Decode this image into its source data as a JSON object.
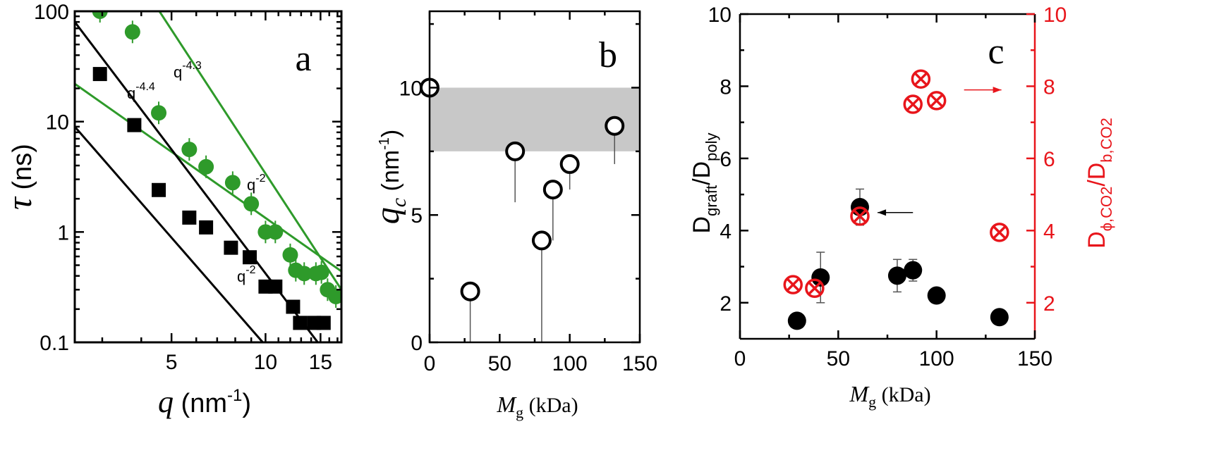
{
  "colors": {
    "green": "#2e9a2a",
    "black": "#000000",
    "red": "#e8151b",
    "band": "#c8c8c8"
  },
  "chart_data": [
    {
      "panel_label": "a",
      "type": "scatter",
      "xscale": "log",
      "yscale": "log",
      "xlim": [
        2.45,
        17.5
      ],
      "ylim": [
        0.1,
        100
      ],
      "xticks": [
        5,
        10,
        15
      ],
      "yticks": [
        0.1,
        1,
        10,
        100
      ],
      "xtick_labels": [
        "5",
        "10",
        "15"
      ],
      "ytick_labels": [
        "0.1",
        "1",
        "10",
        "100"
      ],
      "xlabel_sym": "q",
      "xlabel_unit": "(nm",
      "xlabel_exp": "-1",
      "xlabel_close": ")",
      "ylabel_sym": "τ",
      "ylabel_unit": "(ns)",
      "series": [
        {
          "color": "green",
          "marker": "circle",
          "x": [
            2.95,
            3.75,
            4.55,
            5.7,
            6.45,
            7.85,
            9.0,
            10.0,
            10.75,
            12.0,
            12.5,
            13.3,
            14.5,
            15.1,
            15.8,
            16.8
          ],
          "y": [
            100,
            65,
            12,
            5.6,
            3.9,
            2.8,
            1.8,
            1.0,
            1.0,
            0.62,
            0.45,
            0.42,
            0.42,
            0.43,
            0.3,
            0.26
          ]
        },
        {
          "color": "black",
          "marker": "square",
          "x": [
            2.95,
            3.8,
            4.55,
            5.7,
            6.45,
            7.75,
            8.9,
            10.0,
            10.75,
            12.25,
            12.9,
            14.3,
            15.35
          ],
          "y": [
            27,
            9.3,
            2.4,
            1.35,
            1.1,
            0.72,
            0.59,
            0.32,
            0.32,
            0.21,
            0.15,
            0.15,
            0.15
          ]
        }
      ],
      "fit_lines": [
        {
          "color": "green",
          "x": [
            3.7,
            17.5
          ],
          "y": [
            250,
            0.3
          ],
          "label": "q",
          "exp": "-4.3"
        },
        {
          "color": "green",
          "x": [
            2.45,
            17.5
          ],
          "y": [
            22,
            0.44
          ],
          "label": "q",
          "exp": "-2"
        },
        {
          "color": "black",
          "x": [
            2.45,
            14.7
          ],
          "y": [
            80,
            0.1
          ],
          "label": "q",
          "exp": "-4.4"
        },
        {
          "color": "black",
          "x": [
            2.45,
            9.8
          ],
          "y": [
            9,
            0.1
          ],
          "label": "q",
          "exp": "-2"
        }
      ]
    },
    {
      "panel_label": "b",
      "type": "scatter",
      "xlim": [
        0,
        150
      ],
      "ylim": [
        0,
        13
      ],
      "xticks": [
        0,
        50,
        100,
        150
      ],
      "yticks": [
        0,
        5,
        10
      ],
      "xtick_labels": [
        "0",
        "50",
        "100",
        "150"
      ],
      "ytick_labels": [
        "0",
        "5",
        "10"
      ],
      "xlabel_sym": "M",
      "xlabel_sub": "g",
      "xlabel_unit": "(kDa)",
      "ylabel_sym": "q",
      "ylabel_sub": "c",
      "ylabel_unit": "(nm",
      "ylabel_exp": "-1",
      "ylabel_close": ")",
      "band": [
        7.5,
        10
      ],
      "series": [
        {
          "color": "black",
          "marker": "open-circle",
          "x": [
            0,
            29,
            61,
            80,
            88,
            100,
            132
          ],
          "y": [
            10,
            2,
            7.5,
            4,
            6,
            7,
            8.5
          ],
          "err_low": [
            10,
            0,
            5.5,
            0,
            4,
            6,
            7
          ]
        }
      ]
    },
    {
      "panel_label": "c",
      "type": "scatter",
      "xlim": [
        0,
        150
      ],
      "ylim": [
        1,
        10
      ],
      "y2lim": [
        1,
        10
      ],
      "xticks": [
        0,
        50,
        100,
        150
      ],
      "yticks": [
        2,
        4,
        6,
        8,
        10
      ],
      "y2ticks": [
        2,
        4,
        6,
        8,
        10
      ],
      "xtick_labels": [
        "0",
        "50",
        "100",
        "150"
      ],
      "ytick_labels": [
        "2",
        "4",
        "6",
        "8",
        "10"
      ],
      "y2tick_labels": [
        "2",
        "4",
        "6",
        "8",
        "10"
      ],
      "xlabel_sym": "M",
      "xlabel_sub": "g",
      "xlabel_unit": "(kDa)",
      "ylabel_main": "D",
      "ylabel_sub1": "graft",
      "ylabel_mid": "/D",
      "ylabel_sub2": "poly",
      "y2label_main": "D",
      "y2label_sub1": "ϕ,CO2",
      "y2label_mid": "/D",
      "y2label_sub2": "b,CO2",
      "series": [
        {
          "color": "black",
          "marker": "circle",
          "axis": "left",
          "x": [
            29,
            41,
            61,
            80,
            88,
            100,
            132
          ],
          "y": [
            1.5,
            2.7,
            4.65,
            2.75,
            2.9,
            2.2,
            1.6
          ],
          "err": [
            0,
            0.7,
            0.5,
            0.45,
            0.3,
            0,
            0
          ]
        },
        {
          "color": "red",
          "marker": "circle-x",
          "axis": "right",
          "x": [
            27,
            38,
            61,
            88,
            92,
            100,
            132
          ],
          "y": [
            2.5,
            2.4,
            4.4,
            7.5,
            8.2,
            7.6,
            3.95
          ]
        }
      ],
      "arrows": [
        {
          "direction": "left",
          "axis": "left",
          "x": [
            88,
            70
          ],
          "y": 4.5,
          "color": "black"
        },
        {
          "direction": "right",
          "axis": "right",
          "x": [
            114,
            133
          ],
          "y": 7.9,
          "color": "red"
        }
      ]
    }
  ]
}
